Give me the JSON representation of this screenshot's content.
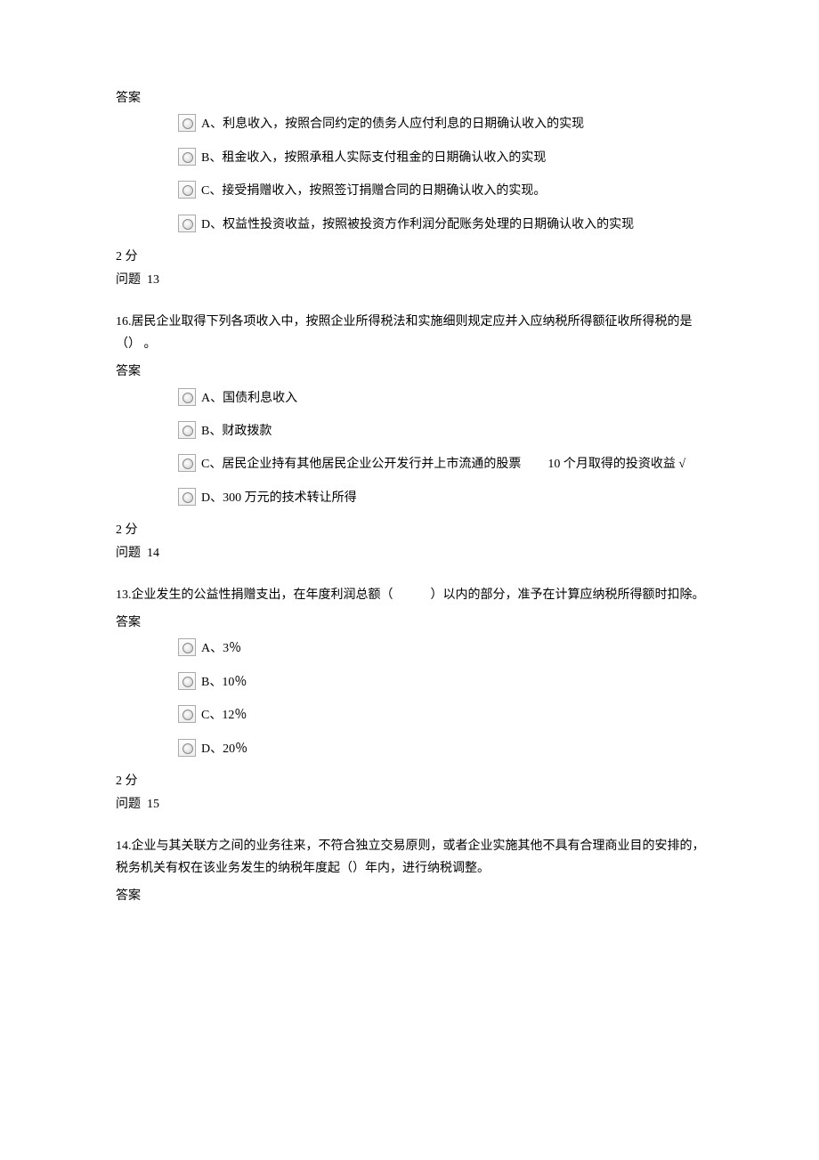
{
  "labels": {
    "answer": "答案",
    "score": "2 分",
    "question_prefix": "问题"
  },
  "q12": {
    "options": {
      "a": "A、利息收入，按照合同约定的债务人应付利息的日期确认收入的实现",
      "b": "B、租金收入，按照承租人实际支付租金的日期确认收入的实现",
      "c": "C、接受捐赠收入，按照签订捐赠合同的日期确认收入的实现。",
      "d": "D、权益性投资收益，按照被投资方作利润分配账务处理的日期确认收入的实现"
    },
    "question_num": "13"
  },
  "q13": {
    "text": "16.居民企业取得下列各项收入中，按照企业所得税法和实施细则规定应并入应纳税所得额征收所得税的是（） 。",
    "options": {
      "a": "A、国债利息收入",
      "b": "B、财政拨款",
      "c_part1": "C、居民企业持有其他居民企业公开发行并上市流通的股票",
      "c_part2": "10 个月取得的投资收益 √",
      "d": "D、300 万元的技术转让所得"
    },
    "question_num": "14"
  },
  "q14": {
    "text": "13.企业发生的公益性捐赠支出，在年度利润总额（　　　）以内的部分，准予在计算应纳税所得额时扣除。",
    "options": {
      "a": "A、3％",
      "b": "B、10％",
      "c": "C、12％",
      "d": "D、20％"
    },
    "question_num": "15"
  },
  "q15": {
    "text": "14.企业与其关联方之间的业务往来，不符合独立交易原则，或者企业实施其他不具有合理商业目的安排的，税务机关有权在该业务发生的纳税年度起（）年内，进行纳税调整。"
  }
}
